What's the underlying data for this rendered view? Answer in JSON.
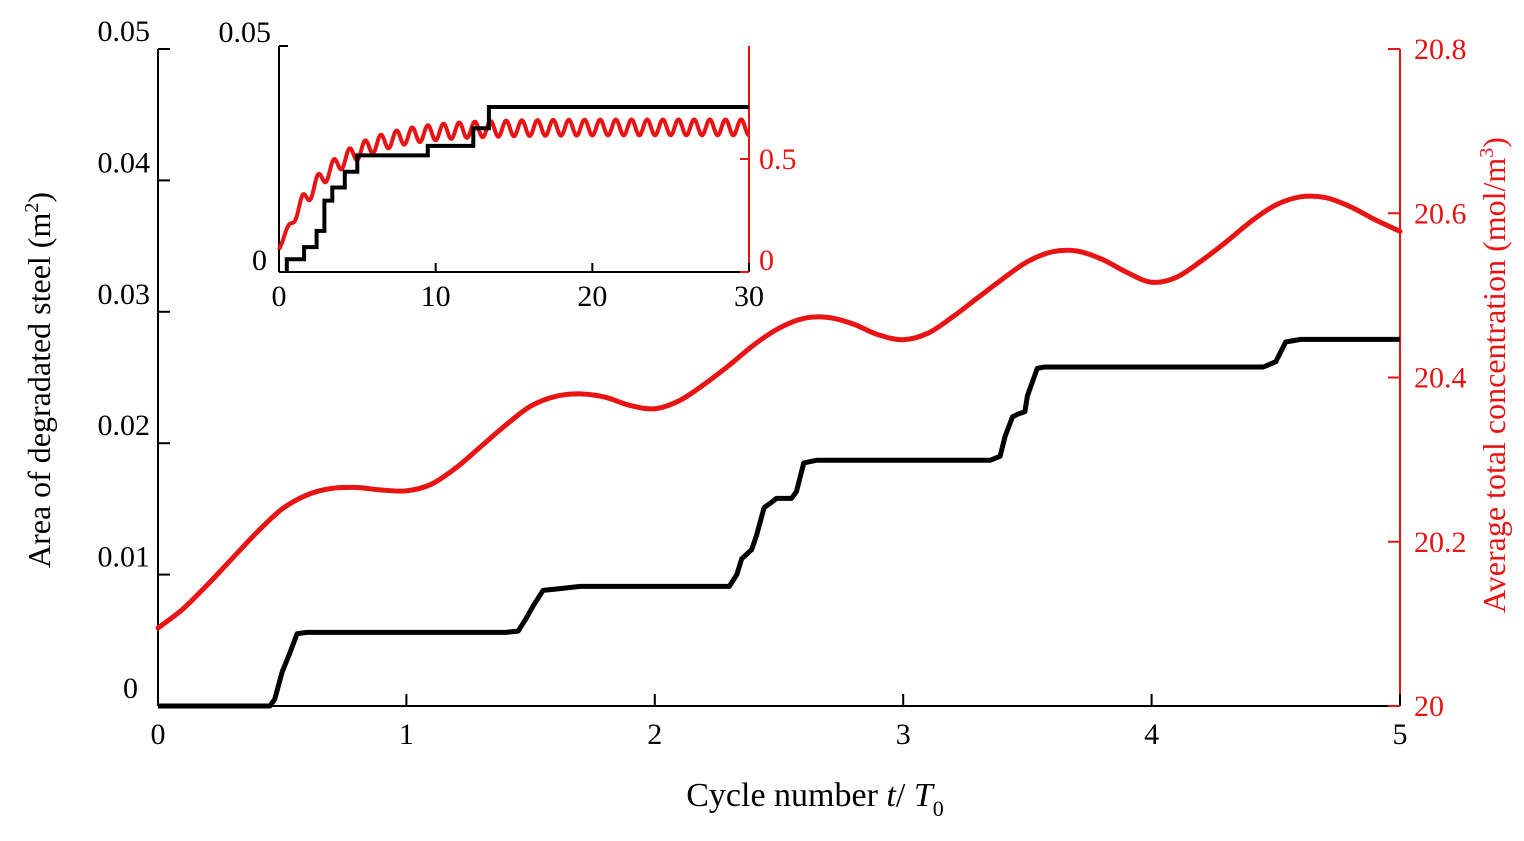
{
  "colors": {
    "black_series": "#000000",
    "red_series": "#e81313",
    "axis_black": "#000000",
    "axis_red": "#e81313"
  },
  "chart_data": [
    {
      "type": "line",
      "title": "",
      "xlabel_prefix": "Cycle number ",
      "xlabel_var": "t",
      "xlabel_sep": "/ ",
      "xlabel_T": "T",
      "xlabel_sub": "0",
      "ylabel_left": "Area of degradated steel (m",
      "ylabel_left_sup": "2",
      "ylabel_left_close": ")",
      "ylabel_right": "Average total concentration (mol/m",
      "ylabel_right_sup": "3",
      "ylabel_right_close": ")",
      "xlim": [
        0,
        5
      ],
      "ylim_left": [
        0,
        0.05
      ],
      "ylim_right": [
        20.0,
        20.8
      ],
      "x_ticks": [
        "0",
        "1",
        "2",
        "3",
        "4",
        "5"
      ],
      "x_tick_values": [
        0,
        1,
        2,
        3,
        4,
        5
      ],
      "y_left_ticks": [
        "0",
        "0.01",
        "0.02",
        "0.03",
        "0.04",
        "0.05"
      ],
      "y_left_tick_values": [
        0,
        0.01,
        0.02,
        0.03,
        0.04,
        0.05
      ],
      "y_right_ticks": [
        "20",
        "20.2",
        "20.4",
        "20.6",
        "20.8"
      ],
      "y_right_tick_values": [
        20.0,
        20.2,
        20.4,
        20.6,
        20.8
      ],
      "series": [
        {
          "name": "Area of degradated steel",
          "axis": "left",
          "color": "#000000",
          "x": [
            0,
            0.45,
            0.47,
            0.5,
            0.53,
            0.56,
            0.6,
            1.0,
            1.4,
            1.45,
            1.48,
            1.51,
            1.55,
            1.6,
            1.7,
            1.9,
            2.1,
            2.3,
            2.33,
            2.35,
            2.39,
            2.41,
            2.44,
            2.47,
            2.49,
            2.55,
            2.57,
            2.6,
            2.65,
            2.8,
            3.0,
            3.2,
            3.35,
            3.39,
            3.41,
            3.44,
            3.46,
            3.49,
            3.5,
            3.54,
            3.57,
            3.62,
            3.8,
            4.0,
            4.2,
            4.45,
            4.5,
            4.54,
            4.6,
            4.8,
            5.0
          ],
          "y": [
            0,
            0,
            0.0005,
            0.0026,
            0.004,
            0.0055,
            0.0056,
            0.0056,
            0.0056,
            0.0057,
            0.0066,
            0.0076,
            0.0088,
            0.0089,
            0.0091,
            0.0091,
            0.0091,
            0.0091,
            0.01,
            0.0112,
            0.0119,
            0.013,
            0.0151,
            0.0155,
            0.0158,
            0.0158,
            0.0163,
            0.0185,
            0.0187,
            0.0187,
            0.0187,
            0.0187,
            0.0187,
            0.019,
            0.0205,
            0.022,
            0.0222,
            0.0224,
            0.0236,
            0.0257,
            0.0258,
            0.0258,
            0.0258,
            0.0258,
            0.0258,
            0.0258,
            0.0262,
            0.0277,
            0.0279,
            0.0279,
            0.0279
          ]
        },
        {
          "name": "Average total concentration",
          "axis": "right",
          "color": "#e81313",
          "x": [
            0,
            0.1,
            0.2,
            0.3,
            0.4,
            0.5,
            0.6,
            0.7,
            0.8,
            0.9,
            1.0,
            1.1,
            1.2,
            1.3,
            1.4,
            1.5,
            1.6,
            1.7,
            1.8,
            1.9,
            2.0,
            2.1,
            2.2,
            2.3,
            2.4,
            2.5,
            2.6,
            2.7,
            2.8,
            2.9,
            3.0,
            3.1,
            3.2,
            3.3,
            3.4,
            3.5,
            3.6,
            3.7,
            3.8,
            3.9,
            4.0,
            4.1,
            4.2,
            4.3,
            4.4,
            4.5,
            4.6,
            4.7,
            4.8,
            4.9,
            5.0
          ],
          "y": [
            20.095,
            20.118,
            20.148,
            20.18,
            20.212,
            20.24,
            20.257,
            20.265,
            20.266,
            20.263,
            20.262,
            20.27,
            20.29,
            20.316,
            20.342,
            20.365,
            20.377,
            20.38,
            20.376,
            20.366,
            20.362,
            20.372,
            20.392,
            20.415,
            20.44,
            20.46,
            20.472,
            20.473,
            20.465,
            20.452,
            20.446,
            20.454,
            20.474,
            20.497,
            20.52,
            20.541,
            20.553,
            20.554,
            20.544,
            20.528,
            20.516,
            20.522,
            20.542,
            20.565,
            20.59,
            20.61,
            20.62,
            20.619,
            20.608,
            20.592,
            20.578
          ]
        }
      ]
    },
    {
      "type": "line",
      "title": "inset",
      "xlim": [
        0,
        30
      ],
      "ylim_left": [
        0,
        0.05
      ],
      "ylim_right": [
        0,
        1.0
      ],
      "x_ticks": [
        "0",
        "10",
        "20",
        "30"
      ],
      "x_tick_values": [
        0,
        10,
        20,
        30
      ],
      "y_left_ticks": [
        "0",
        "0.05"
      ],
      "y_left_tick_values": [
        0,
        0.05
      ],
      "y_right_ticks": [
        "0",
        "0.5"
      ],
      "y_right_tick_values": [
        0,
        0.5
      ],
      "series": [
        {
          "name": "Area of degradated steel (inset)",
          "axis": "left",
          "color": "#000000",
          "x": [
            0.5,
            0.5,
            1.6,
            1.6,
            2.4,
            2.4,
            2.9,
            2.9,
            3.4,
            3.4,
            4.2,
            4.2,
            5.0,
            5.0,
            9.5,
            9.5,
            12.4,
            12.4,
            13.4,
            13.4,
            30
          ],
          "y": [
            0,
            0.0028,
            0.0028,
            0.0055,
            0.0055,
            0.0091,
            0.0091,
            0.0158,
            0.0158,
            0.0187,
            0.0187,
            0.0222,
            0.0222,
            0.0258,
            0.0258,
            0.0279,
            0.0279,
            0.0318,
            0.0318,
            0.0365,
            0.0365
          ]
        },
        {
          "name": "Average total concentration (inset)",
          "axis": "right",
          "color": "#e81313",
          "generator": "rising-oscillation",
          "start": 0.1,
          "plateau": 0.64,
          "rise_rate": 0.32,
          "oscillation_amplitude": 0.035,
          "cycles": 30
        }
      ]
    }
  ]
}
